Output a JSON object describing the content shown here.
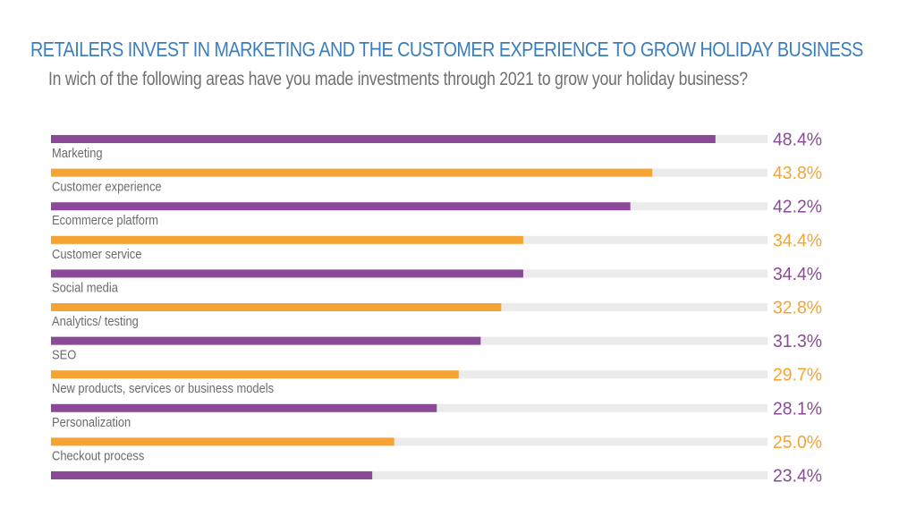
{
  "header": {
    "title": "RETAILERS INVEST IN MARKETING AND THE CUSTOMER EXPERIENCE TO GROW HOLIDAY BUSINESS",
    "subtitle": "In wich of the following areas have you made investments through 2021 to grow your holiday business?"
  },
  "colors": {
    "purple": "#8b4a97",
    "orange": "#f5a433",
    "track": "#ebebeb",
    "title": "#3a7ebd"
  },
  "chart_data": {
    "type": "bar",
    "orientation": "horizontal",
    "title": "RETAILERS INVEST IN MARKETING AND THE CUSTOMER EXPERIENCE TO GROW HOLIDAY BUSINESS",
    "subtitle": "In wich of the following areas have you made investments through 2021 to grow your holiday business?",
    "xlabel": "",
    "ylabel": "",
    "xlim": [
      0,
      50
    ],
    "grid": false,
    "categories": [
      "Marketing",
      "Customer experience",
      "Ecommerce platform",
      "Customer service",
      "Social media",
      "Analytics/ testing",
      "SEO",
      "New products, services or business models",
      "Personalization",
      "Checkout process",
      ""
    ],
    "values": [
      48.4,
      43.8,
      42.2,
      34.4,
      34.4,
      32.8,
      31.3,
      29.7,
      28.1,
      25.0,
      23.4
    ],
    "value_labels": [
      "48.4%",
      "43.8%",
      "42.2%",
      "34.4%",
      "34.4%",
      "32.8%",
      "31.3%",
      "29.7%",
      "28.1%",
      "25.0%",
      "23.4%"
    ],
    "bar_colors": [
      "purple",
      "orange",
      "purple",
      "orange",
      "purple",
      "orange",
      "purple",
      "orange",
      "purple",
      "orange",
      "purple"
    ],
    "category_label_placement": "below-bar"
  }
}
